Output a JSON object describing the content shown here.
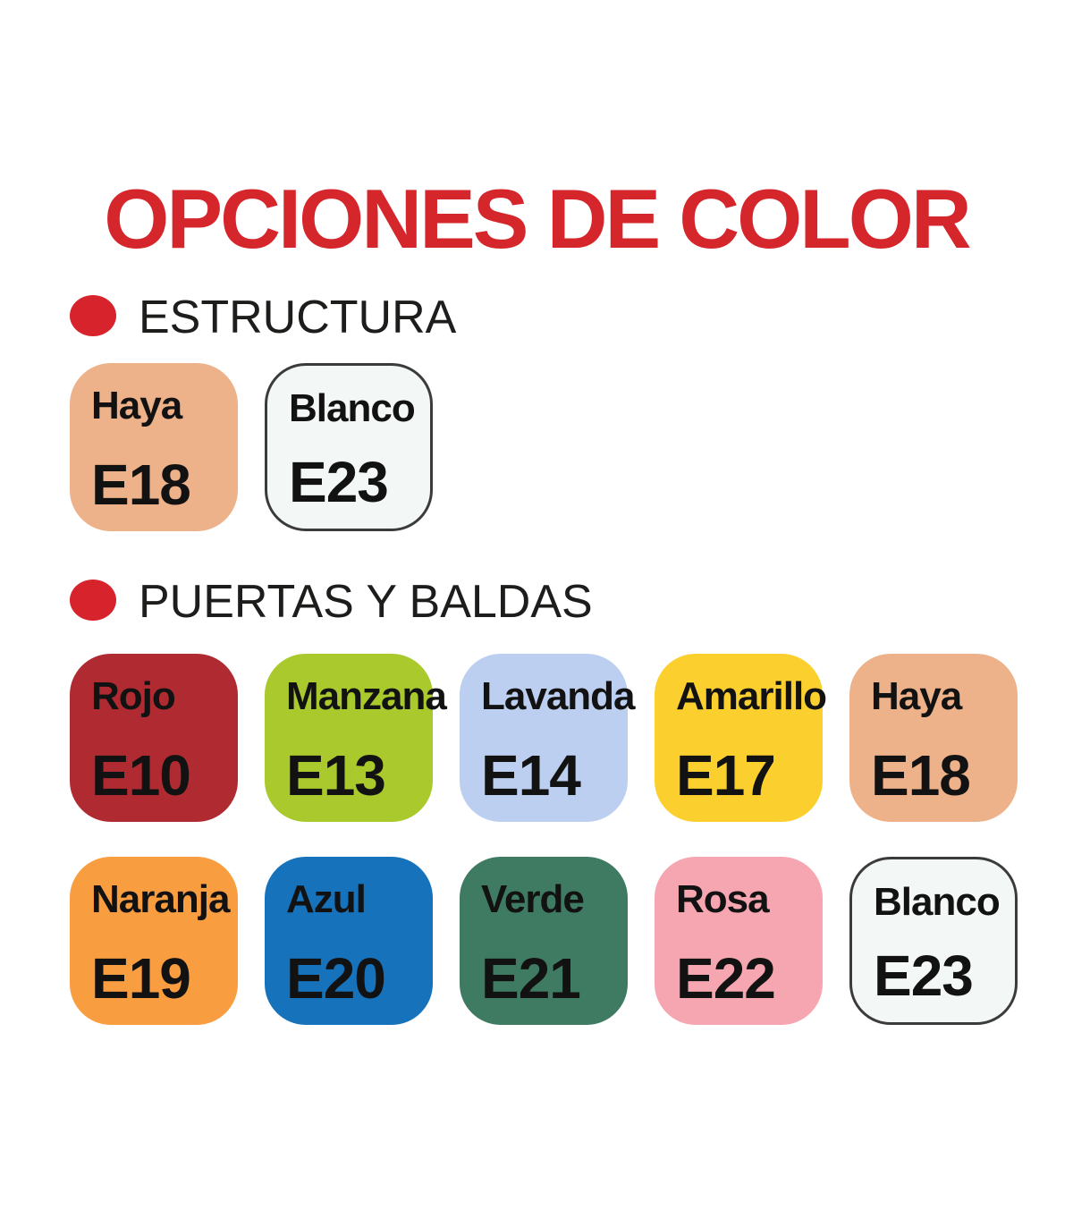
{
  "title": {
    "text": "OPCIONES DE COLOR",
    "color": "#D5262C"
  },
  "bullet_icon": "red-dot",
  "sections": [
    {
      "label": "ESTRUCTURA",
      "bullet_color": "#D7232B",
      "swatches": [
        {
          "name": "Haya",
          "code": "E18",
          "fill": "#EEB28A",
          "texture": "wood"
        },
        {
          "name": "Blanco",
          "code": "E23",
          "fill": "#F3F7F6",
          "border": "#3B3B39"
        }
      ]
    },
    {
      "label": "PUERTAS Y BALDAS",
      "bullet_color": "#D7232B",
      "swatches": [
        {
          "name": "Rojo",
          "code": "E10",
          "fill": "#B02B31"
        },
        {
          "name": "Manzana",
          "code": "E13",
          "fill": "#A9C92C"
        },
        {
          "name": "Lavanda",
          "code": "E14",
          "fill": "#BCCFF0"
        },
        {
          "name": "Amarillo",
          "code": "E17",
          "fill": "#FBD02E"
        },
        {
          "name": "Haya",
          "code": "E18",
          "fill": "#EEB28A",
          "texture": "wood"
        },
        {
          "name": "Naranja",
          "code": "E19",
          "fill": "#F99D41"
        },
        {
          "name": "Azul",
          "code": "E20",
          "fill": "#1572BB"
        },
        {
          "name": "Verde",
          "code": "E21",
          "fill": "#3F7A62"
        },
        {
          "name": "Rosa",
          "code": "E22",
          "fill": "#F6A6B1"
        },
        {
          "name": "Blanco",
          "code": "E23",
          "fill": "#F3F7F6",
          "border": "#3B3B39"
        }
      ]
    }
  ]
}
